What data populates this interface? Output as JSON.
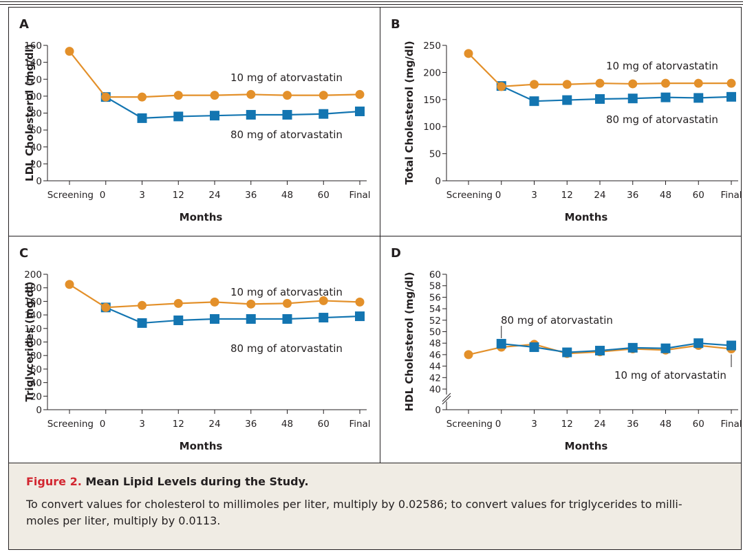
{
  "caption": {
    "figure_number": "Figure 2.",
    "title": "Mean Lipid Levels during the Study.",
    "body_line1": "To convert values for cholesterol to millimoles per liter, multiply by 0.02586; to convert values for triglycerides to milli-",
    "body_line2": "moles per liter, multiply by 0.0113."
  },
  "colors": {
    "atorvastatin_10mg": "#e3902a",
    "atorvastatin_80mg": "#1375b1",
    "caption_bg": "#f0ece4",
    "figure_number": "#d22630"
  },
  "chart_data": [
    {
      "panel": "A",
      "type": "line",
      "categories": [
        "Screening",
        "0",
        "3",
        "12",
        "24",
        "36",
        "48",
        "60",
        "Final"
      ],
      "xlabel": "Months",
      "ylabel": "LDL Cholesterol (mg/dl)",
      "ylim": [
        0,
        160
      ],
      "yticks": [
        0,
        20,
        40,
        60,
        80,
        100,
        120,
        140,
        160
      ],
      "series": [
        {
          "name": "10 mg of atorvastatin",
          "marker": "circle",
          "color": "#e3902a",
          "values": [
            153,
            99,
            99,
            101,
            101,
            102,
            101,
            101,
            102
          ]
        },
        {
          "name": "80 mg of atorvastatin",
          "marker": "square",
          "color": "#1375b1",
          "values": [
            null,
            99,
            74,
            76,
            77,
            78,
            78,
            79,
            82
          ]
        }
      ]
    },
    {
      "panel": "B",
      "type": "line",
      "categories": [
        "Screening",
        "0",
        "3",
        "12",
        "24",
        "36",
        "48",
        "60",
        "Final"
      ],
      "xlabel": "Months",
      "ylabel": "Total Cholesterol (mg/dl)",
      "ylim": [
        0,
        250
      ],
      "yticks": [
        0,
        50,
        100,
        150,
        200,
        250
      ],
      "series": [
        {
          "name": "10 mg of atorvastatin",
          "marker": "circle",
          "color": "#e3902a",
          "values": [
            235,
            174,
            178,
            178,
            180,
            179,
            180,
            180,
            180
          ]
        },
        {
          "name": "80 mg of atorvastatin",
          "marker": "square",
          "color": "#1375b1",
          "values": [
            null,
            175,
            147,
            149,
            151,
            152,
            154,
            153,
            155
          ]
        }
      ]
    },
    {
      "panel": "C",
      "type": "line",
      "categories": [
        "Screening",
        "0",
        "3",
        "12",
        "24",
        "36",
        "48",
        "60",
        "Final"
      ],
      "xlabel": "Months",
      "ylabel": "Triglycerides (mg/dl)",
      "ylim": [
        0,
        200
      ],
      "yticks": [
        0,
        20,
        40,
        60,
        80,
        100,
        120,
        140,
        160,
        180,
        200
      ],
      "series": [
        {
          "name": "10 mg of atorvastatin",
          "marker": "circle",
          "color": "#e3902a",
          "values": [
            185,
            151,
            154,
            157,
            159,
            156,
            157,
            161,
            159
          ]
        },
        {
          "name": "80 mg of atorvastatin",
          "marker": "square",
          "color": "#1375b1",
          "values": [
            null,
            151,
            128,
            132,
            134,
            134,
            134,
            136,
            138
          ]
        }
      ]
    },
    {
      "panel": "D",
      "type": "line",
      "categories": [
        "Screening",
        "0",
        "3",
        "12",
        "24",
        "36",
        "48",
        "60",
        "Final"
      ],
      "xlabel": "Months",
      "ylabel": "HDL Cholesterol (mg/dl)",
      "ylim": [
        40,
        60
      ],
      "axis_break": true,
      "yticks": [
        0,
        40,
        42,
        44,
        46,
        48,
        50,
        52,
        54,
        56,
        58,
        60
      ],
      "series": [
        {
          "name": "10 mg of atorvastatin",
          "marker": "circle",
          "color": "#e3902a",
          "values": [
            46,
            47.3,
            47.8,
            46.2,
            46.5,
            47.0,
            46.8,
            47.6,
            47.0
          ]
        },
        {
          "name": "80 mg of atorvastatin",
          "marker": "square",
          "color": "#1375b1",
          "values": [
            null,
            47.9,
            47.3,
            46.4,
            46.7,
            47.2,
            47.1,
            48.0,
            47.6
          ]
        }
      ]
    }
  ]
}
